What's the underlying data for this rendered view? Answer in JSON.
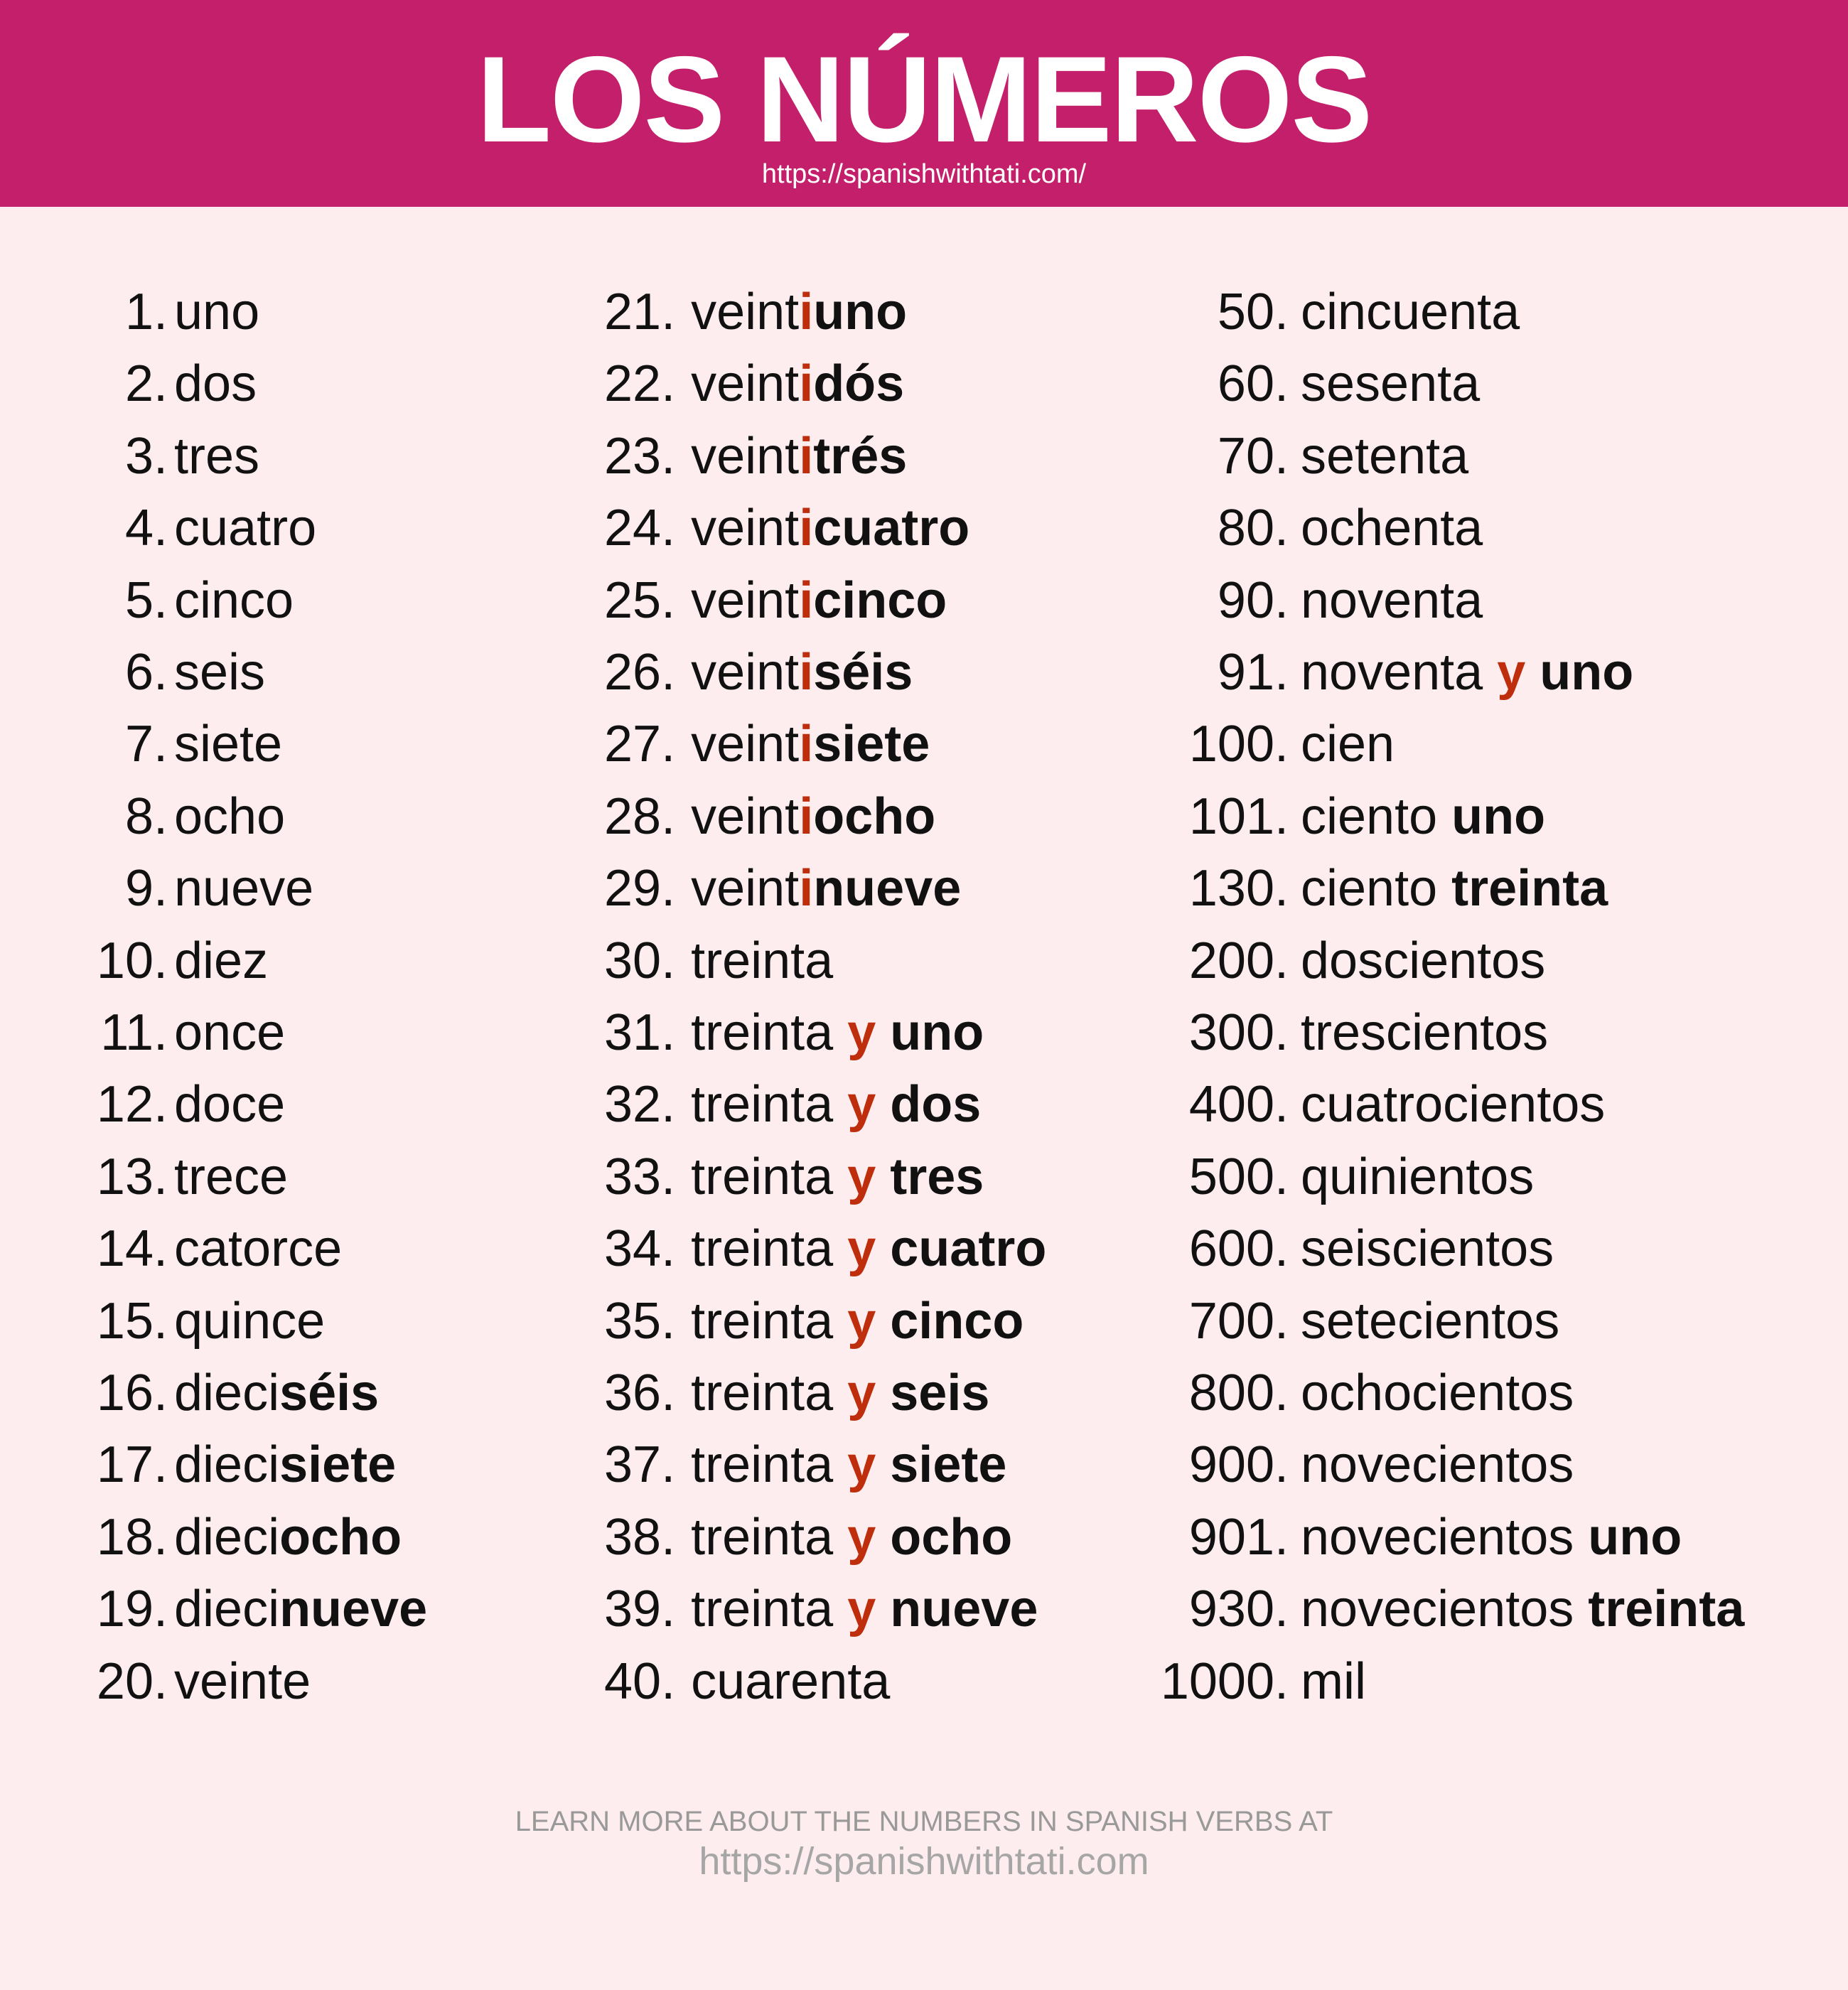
{
  "header": {
    "title": "LOS NÚMEROS",
    "url": "https://spanishwithtati.com/",
    "color": "#c41f6a"
  },
  "colors": {
    "background": "#fdedee",
    "highlight": "#bf2e0c",
    "text": "#111111"
  },
  "columns": [
    [
      {
        "num": "1.",
        "parts": [
          {
            "t": "uno",
            "s": "n"
          }
        ]
      },
      {
        "num": "2.",
        "parts": [
          {
            "t": "dos",
            "s": "n"
          }
        ]
      },
      {
        "num": "3.",
        "parts": [
          {
            "t": "tres",
            "s": "n"
          }
        ]
      },
      {
        "num": "4.",
        "parts": [
          {
            "t": "cuatro",
            "s": "n"
          }
        ]
      },
      {
        "num": "5.",
        "parts": [
          {
            "t": "cinco",
            "s": "n"
          }
        ]
      },
      {
        "num": "6.",
        "parts": [
          {
            "t": "seis",
            "s": "n"
          }
        ]
      },
      {
        "num": "7.",
        "parts": [
          {
            "t": "siete",
            "s": "n"
          }
        ]
      },
      {
        "num": "8.",
        "parts": [
          {
            "t": "ocho",
            "s": "n"
          }
        ]
      },
      {
        "num": "9.",
        "parts": [
          {
            "t": "nueve",
            "s": "n"
          }
        ]
      },
      {
        "num": "10.",
        "parts": [
          {
            "t": "diez",
            "s": "n"
          }
        ]
      },
      {
        "num": "11.",
        "parts": [
          {
            "t": "once",
            "s": "n"
          }
        ]
      },
      {
        "num": "12.",
        "parts": [
          {
            "t": "doce",
            "s": "n"
          }
        ]
      },
      {
        "num": "13.",
        "parts": [
          {
            "t": "trece",
            "s": "n"
          }
        ]
      },
      {
        "num": "14.",
        "parts": [
          {
            "t": "catorce",
            "s": "n"
          }
        ]
      },
      {
        "num": "15.",
        "parts": [
          {
            "t": "quince",
            "s": "n"
          }
        ]
      },
      {
        "num": "16.",
        "parts": [
          {
            "t": "dieci",
            "s": "n"
          },
          {
            "t": "séis",
            "s": "b"
          }
        ]
      },
      {
        "num": "17.",
        "parts": [
          {
            "t": "dieci",
            "s": "n"
          },
          {
            "t": "siete",
            "s": "b"
          }
        ]
      },
      {
        "num": "18.",
        "parts": [
          {
            "t": "dieci",
            "s": "n"
          },
          {
            "t": "ocho",
            "s": "b"
          }
        ]
      },
      {
        "num": "19.",
        "parts": [
          {
            "t": "dieci",
            "s": "n"
          },
          {
            "t": "nueve",
            "s": "b"
          }
        ]
      },
      {
        "num": "20.",
        "parts": [
          {
            "t": "veinte",
            "s": "n"
          }
        ]
      }
    ],
    [
      {
        "num": "21.",
        "parts": [
          {
            "t": "veint",
            "s": "n"
          },
          {
            "t": "i",
            "s": "r"
          },
          {
            "t": "uno",
            "s": "b"
          }
        ]
      },
      {
        "num": "22.",
        "parts": [
          {
            "t": "veint",
            "s": "n"
          },
          {
            "t": "i",
            "s": "r"
          },
          {
            "t": "dós",
            "s": "b"
          }
        ]
      },
      {
        "num": "23.",
        "parts": [
          {
            "t": "veint",
            "s": "n"
          },
          {
            "t": "i",
            "s": "r"
          },
          {
            "t": "trés",
            "s": "b"
          }
        ]
      },
      {
        "num": "24.",
        "parts": [
          {
            "t": "veint",
            "s": "n"
          },
          {
            "t": "i",
            "s": "r"
          },
          {
            "t": "cuatro",
            "s": "b"
          }
        ]
      },
      {
        "num": "25.",
        "parts": [
          {
            "t": "veint",
            "s": "n"
          },
          {
            "t": "i",
            "s": "r"
          },
          {
            "t": "cinco",
            "s": "b"
          }
        ]
      },
      {
        "num": "26.",
        "parts": [
          {
            "t": "veint",
            "s": "n"
          },
          {
            "t": "i",
            "s": "r"
          },
          {
            "t": "séis",
            "s": "b"
          }
        ]
      },
      {
        "num": "27.",
        "parts": [
          {
            "t": "veint",
            "s": "n"
          },
          {
            "t": "i",
            "s": "r"
          },
          {
            "t": "siete",
            "s": "b"
          }
        ]
      },
      {
        "num": "28.",
        "parts": [
          {
            "t": "veint",
            "s": "n"
          },
          {
            "t": "i",
            "s": "r"
          },
          {
            "t": "ocho",
            "s": "b"
          }
        ]
      },
      {
        "num": "29.",
        "parts": [
          {
            "t": "veint",
            "s": "n"
          },
          {
            "t": "i",
            "s": "r"
          },
          {
            "t": "nueve",
            "s": "b"
          }
        ]
      },
      {
        "num": "30.",
        "parts": [
          {
            "t": "treinta",
            "s": "n"
          }
        ]
      },
      {
        "num": "31.",
        "parts": [
          {
            "t": "treinta ",
            "s": "n"
          },
          {
            "t": "y ",
            "s": "r"
          },
          {
            "t": "uno",
            "s": "b"
          }
        ]
      },
      {
        "num": "32.",
        "parts": [
          {
            "t": "treinta ",
            "s": "n"
          },
          {
            "t": "y ",
            "s": "r"
          },
          {
            "t": "dos",
            "s": "b"
          }
        ]
      },
      {
        "num": "33.",
        "parts": [
          {
            "t": "treinta ",
            "s": "n"
          },
          {
            "t": "y ",
            "s": "r"
          },
          {
            "t": "tres",
            "s": "b"
          }
        ]
      },
      {
        "num": "34.",
        "parts": [
          {
            "t": "treinta ",
            "s": "n"
          },
          {
            "t": "y ",
            "s": "r"
          },
          {
            "t": "cuatro",
            "s": "b"
          }
        ]
      },
      {
        "num": "35.",
        "parts": [
          {
            "t": "treinta ",
            "s": "n"
          },
          {
            "t": "y ",
            "s": "r"
          },
          {
            "t": "cinco",
            "s": "b"
          }
        ]
      },
      {
        "num": "36.",
        "parts": [
          {
            "t": "treinta ",
            "s": "n"
          },
          {
            "t": "y ",
            "s": "r"
          },
          {
            "t": "seis",
            "s": "b"
          }
        ]
      },
      {
        "num": "37.",
        "parts": [
          {
            "t": "treinta ",
            "s": "n"
          },
          {
            "t": "y ",
            "s": "r"
          },
          {
            "t": "siete",
            "s": "b"
          }
        ]
      },
      {
        "num": "38.",
        "parts": [
          {
            "t": "treinta ",
            "s": "n"
          },
          {
            "t": "y ",
            "s": "r"
          },
          {
            "t": "ocho",
            "s": "b"
          }
        ]
      },
      {
        "num": "39.",
        "parts": [
          {
            "t": "treinta ",
            "s": "n"
          },
          {
            "t": "y ",
            "s": "r"
          },
          {
            "t": "nueve",
            "s": "b"
          }
        ]
      },
      {
        "num": "40.",
        "parts": [
          {
            "t": "cuarenta",
            "s": "n"
          }
        ]
      }
    ],
    [
      {
        "num": "50.",
        "parts": [
          {
            "t": "cincuenta",
            "s": "n"
          }
        ]
      },
      {
        "num": "60.",
        "parts": [
          {
            "t": "sesenta",
            "s": "n"
          }
        ]
      },
      {
        "num": "70.",
        "parts": [
          {
            "t": "setenta",
            "s": "n"
          }
        ]
      },
      {
        "num": "80.",
        "parts": [
          {
            "t": "ochenta",
            "s": "n"
          }
        ]
      },
      {
        "num": "90.",
        "parts": [
          {
            "t": "noventa",
            "s": "n"
          }
        ]
      },
      {
        "num": "91.",
        "parts": [
          {
            "t": "noventa ",
            "s": "n"
          },
          {
            "t": "y ",
            "s": "r"
          },
          {
            "t": "uno",
            "s": "b"
          }
        ]
      },
      {
        "num": "100.",
        "parts": [
          {
            "t": "cien",
            "s": "n"
          }
        ]
      },
      {
        "num": "101.",
        "parts": [
          {
            "t": "ciento ",
            "s": "n"
          },
          {
            "t": "uno",
            "s": "b"
          }
        ]
      },
      {
        "num": "130.",
        "parts": [
          {
            "t": "ciento ",
            "s": "n"
          },
          {
            "t": "treinta",
            "s": "b"
          }
        ]
      },
      {
        "num": "200.",
        "parts": [
          {
            "t": "doscientos",
            "s": "n"
          }
        ]
      },
      {
        "num": "300.",
        "parts": [
          {
            "t": "trescientos",
            "s": "n"
          }
        ]
      },
      {
        "num": "400.",
        "parts": [
          {
            "t": "cuatrocientos",
            "s": "n"
          }
        ]
      },
      {
        "num": "500.",
        "parts": [
          {
            "t": "quinientos",
            "s": "n"
          }
        ]
      },
      {
        "num": "600.",
        "parts": [
          {
            "t": "seiscientos",
            "s": "n"
          }
        ]
      },
      {
        "num": "700.",
        "parts": [
          {
            "t": "setecientos",
            "s": "n"
          }
        ]
      },
      {
        "num": "800.",
        "parts": [
          {
            "t": "ochocientos",
            "s": "n"
          }
        ]
      },
      {
        "num": "900.",
        "parts": [
          {
            "t": "novecientos",
            "s": "n"
          }
        ]
      },
      {
        "num": "901.",
        "parts": [
          {
            "t": "novecientos ",
            "s": "n"
          },
          {
            "t": "uno",
            "s": "b"
          }
        ]
      },
      {
        "num": "930.",
        "parts": [
          {
            "t": "novecientos ",
            "s": "n"
          },
          {
            "t": "treinta",
            "s": "b"
          }
        ]
      },
      {
        "num": "1000.",
        "parts": [
          {
            "t": "mil",
            "s": "n"
          }
        ]
      }
    ]
  ],
  "footer": {
    "line1": "LEARN MORE ABOUT THE NUMBERS IN SPANISH VERBS AT",
    "url": "https://spanishwithtati.com"
  }
}
